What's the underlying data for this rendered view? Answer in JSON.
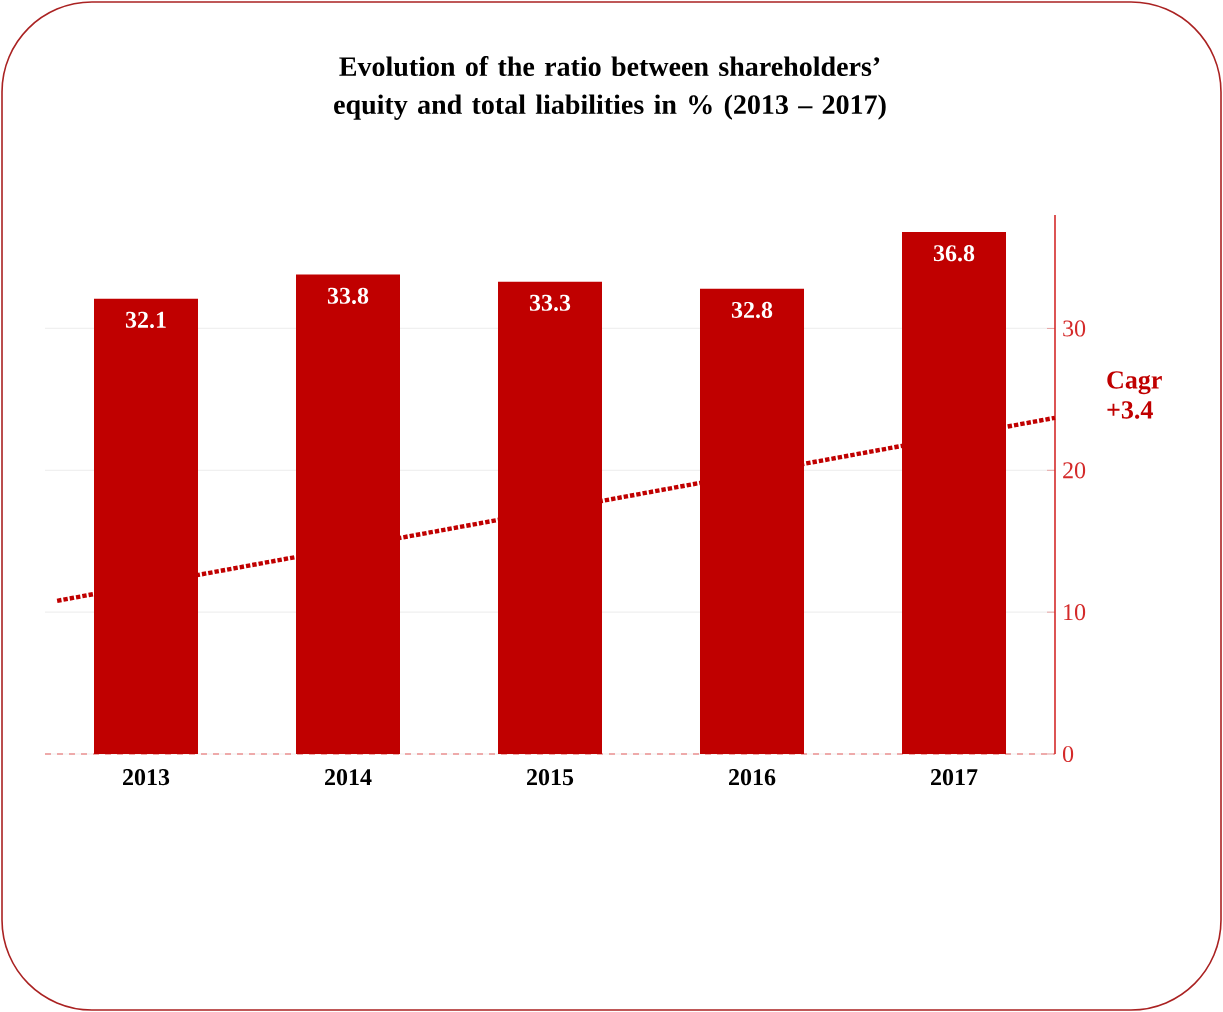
{
  "chart_data": {
    "type": "bar",
    "title": "Evolution of the ratio between shareholders’ equity and total liabilities in % (2013 – 2017)",
    "x": [
      2013,
      2014,
      2015,
      2016,
      2017
    ],
    "xlim": [
      2012.5,
      2017.5
    ],
    "xticks": [
      2013,
      2014,
      2015,
      2016,
      2017
    ],
    "series": [
      {
        "type": "bar",
        "color": "#c00000",
        "values": [
          32.1,
          33.8,
          33.3,
          32.8,
          36.8
        ],
        "value_labels": [
          "32.1",
          "33.8",
          "33.3",
          "32.8",
          "36.8"
        ]
      },
      {
        "type": "line",
        "color": "#c00000",
        "line_style": "dotted",
        "x": [
          2012.56,
          2017.5
        ],
        "values": [
          10.8,
          23.7
        ]
      }
    ],
    "ylim": [
      0,
      38
    ],
    "yticks": [
      0,
      10,
      20,
      30
    ],
    "grid": "y",
    "annotations": [
      "Cagr +3.4"
    ]
  }
}
